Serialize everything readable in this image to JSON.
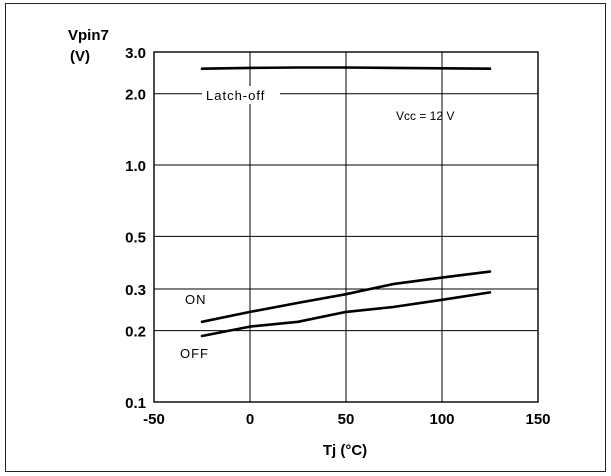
{
  "chart_data": {
    "type": "line",
    "ylabel_line1": "Vpin7",
    "ylabel_line2": "(V)",
    "xlabel": "Tj (°C)",
    "y_scale": "log",
    "xlim": [
      -50,
      150
    ],
    "ylim": [
      0.1,
      3.0
    ],
    "grid": true,
    "x_ticks": [
      -50,
      0,
      50,
      100,
      150
    ],
    "x_tick_labels": [
      "-50",
      "0",
      "50",
      "100",
      "150"
    ],
    "y_ticks": [
      0.1,
      0.2,
      0.3,
      0.5,
      1.0,
      2.0,
      3.0
    ],
    "y_tick_labels": [
      "0.1",
      "0.2",
      "0.3",
      "0.5",
      "1.0",
      "2.0",
      "3.0"
    ],
    "annotation": "Vcc = 12 V",
    "series": [
      {
        "name": "Latch-off",
        "x": [
          -25,
          0,
          25,
          50,
          75,
          100,
          125
        ],
        "y": [
          2.55,
          2.57,
          2.58,
          2.58,
          2.57,
          2.56,
          2.55
        ]
      },
      {
        "name": "ON",
        "x": [
          -25,
          0,
          25,
          50,
          75,
          100,
          125
        ],
        "y": [
          0.218,
          0.24,
          0.262,
          0.285,
          0.315,
          0.335,
          0.355
        ]
      },
      {
        "name": "OFF",
        "x": [
          -25,
          0,
          25,
          50,
          75,
          100,
          125
        ],
        "y": [
          0.19,
          0.208,
          0.218,
          0.24,
          0.252,
          0.27,
          0.29
        ]
      }
    ]
  }
}
